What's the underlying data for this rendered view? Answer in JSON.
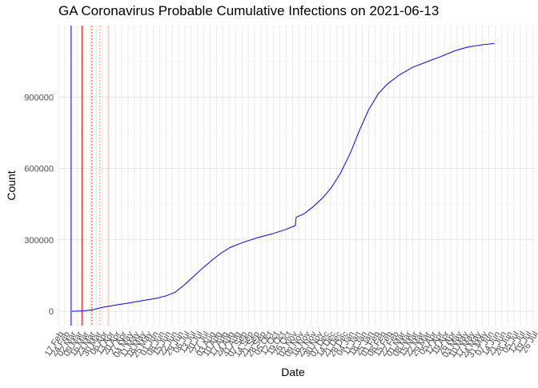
{
  "chart_data": {
    "type": "line",
    "title": "GA Coronavirus Probable Cumulative Infections on 2021-06-13",
    "xlabel": "Date",
    "ylabel": "Count",
    "x_axis": {
      "start": "2020-02-17",
      "end": "2021-07-28",
      "tick_every_days": 7
    },
    "ylim": [
      -60000,
      1200000
    ],
    "y_ticks": [
      0,
      300000,
      600000,
      900000
    ],
    "y_tick_labels": [
      "0",
      "300000",
      "600000",
      "900000"
    ],
    "x_tick_labels": [
      "17 Feb",
      "24 Feb",
      "02 Mar",
      "09 Mar",
      "16 Mar",
      "23 Mar",
      "30 Mar",
      "06 Apr",
      "13 Apr",
      "20 Apr",
      "27 Apr",
      "04 May",
      "11 May",
      "18 May",
      "25 May",
      "01 Jun",
      "08 Jun",
      "15 Jun",
      "22 Jun",
      "29 Jun",
      "06 Jul",
      "13 Jul",
      "20 Jul",
      "27 Jul",
      "03 Aug",
      "10 Aug",
      "17 Aug",
      "24 Aug",
      "31 Aug",
      "07 Sep",
      "14 Sep",
      "21 Sep",
      "28 Sep",
      "05 Oct",
      "12 Oct",
      "19 Oct",
      "26 Oct",
      "02 Nov",
      "09 Nov",
      "16 Nov",
      "23 Nov",
      "30 Nov",
      "07 Dec",
      "14 Dec",
      "21 Dec",
      "28 Dec",
      "04 Jan",
      "11 Jan",
      "18 Jan",
      "25 Jan",
      "01 Feb",
      "08 Feb",
      "15 Feb",
      "22 Feb",
      "01 Mar",
      "08 Mar",
      "15 Mar",
      "22 Mar",
      "29 Mar",
      "05 Apr",
      "12 Apr",
      "19 Apr",
      "26 Apr",
      "03 May",
      "10 May",
      "17 May",
      "24 May",
      "31 May",
      "07 Jun",
      "14 Jun",
      "21 Jun",
      "28 Jun",
      "05 Jul",
      "12 Jul",
      "19 Jul",
      "26 Jul"
    ],
    "series": [
      {
        "color": "#0000ff",
        "points": [
          [
            "2020-03-03",
            0
          ],
          [
            "2020-03-15",
            1500
          ],
          [
            "2020-03-25",
            6000
          ],
          [
            "2020-04-05",
            16000
          ],
          [
            "2020-04-20",
            26000
          ],
          [
            "2020-05-05",
            35000
          ],
          [
            "2020-05-20",
            45000
          ],
          [
            "2020-06-05",
            55000
          ],
          [
            "2020-06-15",
            65000
          ],
          [
            "2020-06-25",
            80000
          ],
          [
            "2020-07-05",
            110000
          ],
          [
            "2020-07-15",
            145000
          ],
          [
            "2020-07-25",
            180000
          ],
          [
            "2020-08-05",
            215000
          ],
          [
            "2020-08-15",
            245000
          ],
          [
            "2020-08-25",
            268000
          ],
          [
            "2020-09-05",
            285000
          ],
          [
            "2020-09-15",
            298000
          ],
          [
            "2020-09-25",
            310000
          ],
          [
            "2020-10-10",
            325000
          ],
          [
            "2020-10-25",
            343000
          ],
          [
            "2020-11-05",
            360000
          ],
          [
            "2020-11-06",
            395000
          ],
          [
            "2020-11-15",
            410000
          ],
          [
            "2020-11-25",
            440000
          ],
          [
            "2020-12-05",
            475000
          ],
          [
            "2020-12-15",
            520000
          ],
          [
            "2020-12-25",
            580000
          ],
          [
            "2021-01-05",
            665000
          ],
          [
            "2021-01-15",
            760000
          ],
          [
            "2021-01-25",
            845000
          ],
          [
            "2021-02-05",
            915000
          ],
          [
            "2021-02-15",
            955000
          ],
          [
            "2021-03-01",
            995000
          ],
          [
            "2021-03-15",
            1025000
          ],
          [
            "2021-04-01",
            1050000
          ],
          [
            "2021-04-15",
            1070000
          ],
          [
            "2021-05-01",
            1095000
          ],
          [
            "2021-05-15",
            1110000
          ],
          [
            "2021-06-01",
            1120000
          ],
          [
            "2021-06-13",
            1125000
          ]
        ]
      }
    ],
    "vertical_lines": [
      {
        "date": "2020-03-02",
        "color": "#0000ff",
        "style": "solid"
      },
      {
        "date": "2020-03-14",
        "color": "#cc0000",
        "style": "solid"
      },
      {
        "date": "2020-03-25",
        "color": "#cc0000",
        "style": "dotted"
      },
      {
        "date": "2020-04-03",
        "color": "#ff6666",
        "style": "dotted"
      },
      {
        "date": "2020-04-12",
        "color": "#ffb3b3",
        "style": "solid"
      }
    ],
    "grid": true,
    "legend": "none"
  }
}
